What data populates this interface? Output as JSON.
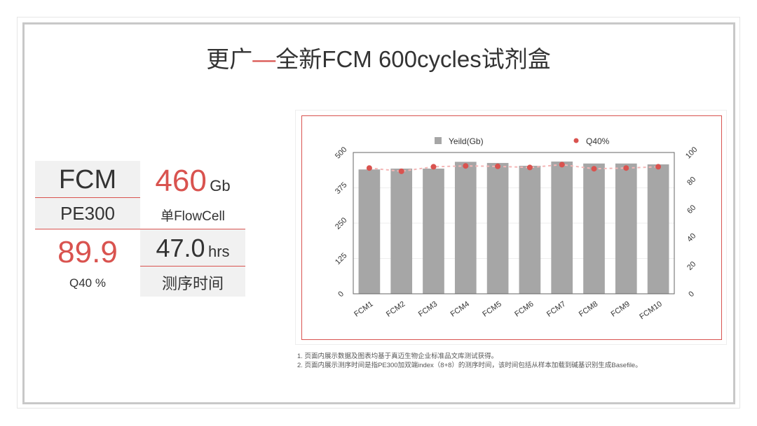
{
  "title": {
    "main": "更广",
    "dash": "—",
    "rest": "全新FCM 600cycles试剂盒"
  },
  "stats": {
    "model_name": "FCM",
    "model_sub": "PE300",
    "yield_value": "460",
    "yield_unit": "Gb",
    "yield_label": "单FlowCell",
    "q40_value": "89.9",
    "q40_label": "Q40 %",
    "time_value": "47.0",
    "time_unit": "hrs",
    "time_label": "测序时间"
  },
  "colors": {
    "accent": "#d9534f",
    "bar": "#a6a6a6",
    "line": "#f4b6b6"
  },
  "chart_data": {
    "type": "bar",
    "categories": [
      "FCM1",
      "FCM2",
      "FCM3",
      "FCM4",
      "FCM5",
      "FCM6",
      "FCM7",
      "FCM8",
      "FCM9",
      "FCM10"
    ],
    "series": [
      {
        "name": "Yeild(Gb)",
        "type": "bar",
        "axis": "left",
        "values": [
          440,
          443,
          443,
          467,
          463,
          453,
          468,
          461,
          461,
          458
        ]
      },
      {
        "name": "Q40%",
        "type": "line",
        "axis": "right",
        "values": [
          89.0,
          86.7,
          89.9,
          90.5,
          90.2,
          89.4,
          91.4,
          88.5,
          89.0,
          89.9
        ]
      }
    ],
    "ylim": [
      0,
      500
    ],
    "yticks": [
      "0",
      "125",
      "250",
      "375",
      "500"
    ],
    "y2lim": [
      0,
      100
    ],
    "y2ticks": [
      "0",
      "20",
      "40",
      "60",
      "80",
      "100"
    ],
    "grid": true,
    "legend": "top"
  },
  "notes": [
    "1.   页面内展示数据及图表均基于真迈生物企业标准品文库测试获得。",
    "2.   页面内展示测序时间是指PE300加双端index（8+8）的测序时间，该时间包括从样本加载到碱基识别生成Basefile。"
  ]
}
